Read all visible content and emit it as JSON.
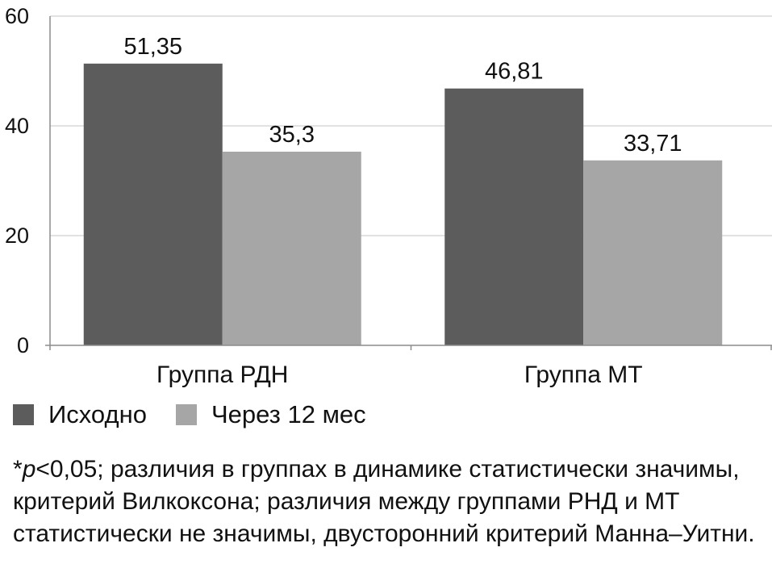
{
  "chart_data": {
    "type": "bar",
    "categories": [
      "Группа РДН",
      "Группа МТ"
    ],
    "series": [
      {
        "name": "Исходно",
        "values": [
          51.35,
          46.81
        ],
        "labels": [
          "51,35",
          "46,81"
        ],
        "color": "#5c5c5c"
      },
      {
        "name": "Через 12 мес",
        "values": [
          35.3,
          33.71
        ],
        "labels": [
          "35,3",
          "33,71"
        ],
        "color": "#a6a6a6"
      }
    ],
    "yticks": [
      0,
      20,
      40,
      60
    ],
    "ylim": [
      0,
      60
    ],
    "grid": true,
    "legend": "bottom-left",
    "grid_color": "#d9d9d9",
    "axis_color": "#8c8c8c"
  },
  "legend": {
    "items": [
      {
        "label": "Исходно",
        "color": "#5c5c5c"
      },
      {
        "label": "Через 12 мес",
        "color": "#a6a6a6"
      }
    ]
  },
  "footnote": {
    "prefix": "*",
    "p_symbol": "p",
    "text": "<0,05; различия в группах в динамике статистически значимы, критерий Вилкоксона; различия между группами РНД и МТ статистически не значимы, двусторонний критерий Манна–Уитни."
  }
}
